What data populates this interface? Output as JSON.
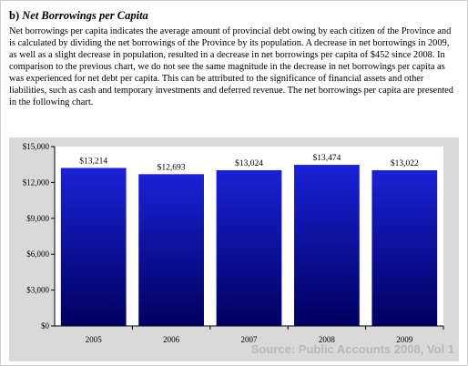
{
  "heading": {
    "prefix": "b)",
    "title": "Net Borrowings per Capita"
  },
  "paragraph": "Net borrowings per capita indicates the average amount of provincial debt owing by each citizen of the Province and is calculated by dividing the net borrowings of the Province by its population.  A decrease in net borrowings in 2009, as well as a slight decrease in population, resulted in a decrease in net borrowings per capita of $452 since 2008.  In comparison to the previous chart, we do not see the same magnitude in the decrease in net borrowings per capita as was experienced for net debt per capita.  This can be attributed to the significance of financial assets and other liabilities, such as cash and temporary investments and deferred revenue.  The net borrowings per capita are presented in the following chart.",
  "colors": {
    "bar_top": "#1a22d6",
    "bar_bottom": "#000060",
    "plot_bg": "#ffffff",
    "chart_bg": "#d9d9d9"
  },
  "chart_data": {
    "type": "bar",
    "categories": [
      "2005",
      "2006",
      "2007",
      "2008",
      "2009"
    ],
    "values": [
      13214,
      12693,
      13024,
      13474,
      13022
    ],
    "value_labels": [
      "$13,214",
      "$12,693",
      "$13,024",
      "$13,474",
      "$13,022"
    ],
    "ylim": [
      0,
      15000
    ],
    "yticks": [
      0,
      3000,
      6000,
      9000,
      12000,
      15000
    ],
    "ytick_labels": [
      "$0",
      "$3,000",
      "$6,000",
      "$9,000",
      "$12,000",
      "$15,000"
    ],
    "grid": false,
    "legend": "none"
  },
  "watermark": "Source:  Public Accounts 2008, Vol 1"
}
